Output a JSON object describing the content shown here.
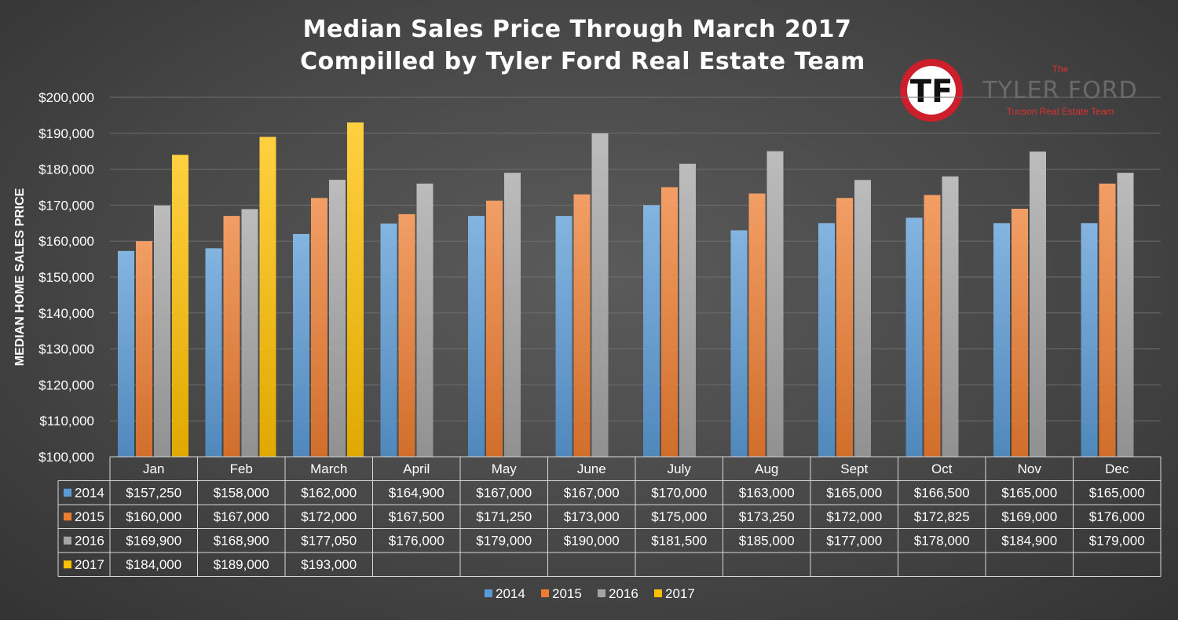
{
  "chart_data": {
    "type": "bar",
    "title": [
      "Median Sales Price Through March 2017",
      "Compilled by Tyler Ford Real Estate Team"
    ],
    "ylabel": "MEDIAN HOME SALES PRICE",
    "ylim": [
      100000,
      200000
    ],
    "yticks": [
      100000,
      110000,
      120000,
      130000,
      140000,
      150000,
      160000,
      170000,
      180000,
      190000,
      200000
    ],
    "ytick_labels": [
      "$100,000",
      "$110,000",
      "$120,000",
      "$130,000",
      "$140,000",
      "$150,000",
      "$160,000",
      "$170,000",
      "$180,000",
      "$190,000",
      "$200,000"
    ],
    "grid": true,
    "legend_position": "bottom",
    "categories": [
      "Jan",
      "Feb",
      "March",
      "April",
      "May",
      "June",
      "July",
      "Aug",
      "Sept",
      "Oct",
      "Nov",
      "Dec"
    ],
    "series": [
      {
        "name": "2014",
        "color": "#5b9bd5",
        "values": [
          157250,
          158000,
          162000,
          164900,
          167000,
          167000,
          170000,
          163000,
          165000,
          166500,
          165000,
          165000
        ],
        "labels": [
          "$157,250",
          "$158,000",
          "$162,000",
          "$164,900",
          "$167,000",
          "$167,000",
          "$170,000",
          "$163,000",
          "$165,000",
          "$166,500",
          "$165,000",
          "$165,000"
        ]
      },
      {
        "name": "2015",
        "color": "#ed7d31",
        "values": [
          160000,
          167000,
          172000,
          167500,
          171250,
          173000,
          175000,
          173250,
          172000,
          172825,
          169000,
          176000
        ],
        "labels": [
          "$160,000",
          "$167,000",
          "$172,000",
          "$167,500",
          "$171,250",
          "$173,000",
          "$175,000",
          "$173,250",
          "$172,000",
          "$172,825",
          "$169,000",
          "$176,000"
        ]
      },
      {
        "name": "2016",
        "color": "#a5a5a5",
        "values": [
          169900,
          168900,
          177050,
          176000,
          179000,
          190000,
          181500,
          185000,
          177000,
          178000,
          184900,
          179000
        ],
        "labels": [
          "$169,900",
          "$168,900",
          "$177,050",
          "$176,000",
          "$179,000",
          "$190,000",
          "$181,500",
          "$185,000",
          "$177,000",
          "$178,000",
          "$184,900",
          "$179,000"
        ]
      },
      {
        "name": "2017",
        "color": "#ffc000",
        "values": [
          184000,
          189000,
          193000,
          null,
          null,
          null,
          null,
          null,
          null,
          null,
          null,
          null
        ],
        "labels": [
          "$184,000",
          "$189,000",
          "$193,000",
          "",
          "",
          "",
          "",
          "",
          "",
          "",
          "",
          ""
        ]
      }
    ]
  },
  "logo": {
    "the": "The",
    "name": "TYLER FORD",
    "subtitle": "Tucson Real Estate Team",
    "monogram": "TF",
    "colors": {
      "ring": "#cc1f2b",
      "inner": "#ffffff"
    }
  }
}
